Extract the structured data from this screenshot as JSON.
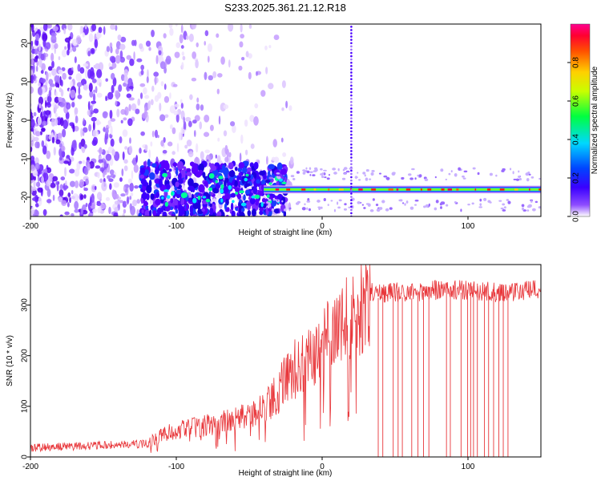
{
  "figure": {
    "title": "S233.2025.361.21.12.R18"
  },
  "chart_data": [
    {
      "type": "heatmap",
      "title": "S233.2025.361.21.12.R18",
      "xlabel": "Height of straight line (km)",
      "ylabel": "Frequency (Hz)",
      "xlim": [
        -200,
        150
      ],
      "ylim": [
        -25,
        25
      ],
      "xticks": [
        -200,
        -100,
        0,
        100
      ],
      "yticks": [
        -20,
        -10,
        0,
        10,
        20
      ],
      "colorbar": {
        "label": "Normalized spectral amplitude",
        "range": [
          0,
          1
        ],
        "ticks": [
          0.0,
          0.2,
          0.4,
          0.6,
          0.8
        ],
        "tick_labels": [
          "0.0",
          "0.2",
          "0.4",
          "0.6",
          "0.8"
        ],
        "colormap": [
          "#ffffff",
          "#6a00ff",
          "#0000ff",
          "#00ffff",
          "#00ff00",
          "#ffff00",
          "#ff8000",
          "#ff0000",
          "#ff0080"
        ]
      },
      "features": {
        "dominant_band_hz": -18,
        "band_start_km": -40,
        "spike_x_km": 20,
        "noise_region_km": [
          -200,
          -40
        ]
      }
    },
    {
      "type": "line",
      "xlabel": "Height of straight line (km)",
      "ylabel": "SNR (10 * v/v)",
      "xlim": [
        -200,
        150
      ],
      "ylim": [
        0,
        380
      ],
      "xticks": [
        -200,
        -100,
        0,
        100
      ],
      "yticks": [
        0,
        100,
        200,
        300
      ],
      "line_color": "#e8363a",
      "series": [
        {
          "name": "SNR",
          "x": [
            -200,
            -180,
            -160,
            -140,
            -120,
            -110,
            -100,
            -80,
            -60,
            -40,
            -30,
            -20,
            -10,
            0,
            5,
            10,
            15,
            20,
            25,
            30,
            33,
            40,
            60,
            80,
            100,
            120,
            150
          ],
          "y": [
            18,
            20,
            22,
            24,
            26,
            45,
            52,
            62,
            72,
            95,
            130,
            170,
            190,
            215,
            235,
            240,
            260,
            275,
            295,
            300,
            325,
            325,
            325,
            330,
            330,
            325,
            330
          ]
        }
      ],
      "dropouts_x_start_km": 33
    }
  ]
}
